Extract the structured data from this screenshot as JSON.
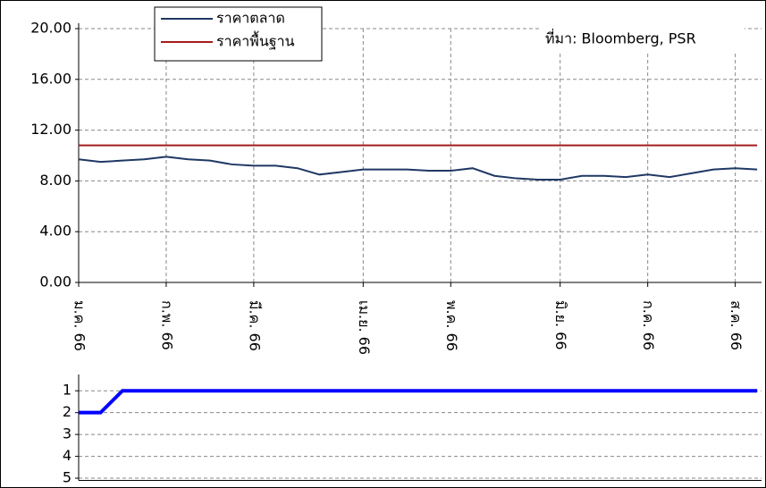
{
  "chart_data": [
    {
      "type": "line",
      "categories": [
        "ม.ค. 66",
        null,
        null,
        null,
        "ก.พ. 66",
        null,
        null,
        null,
        "มี.ค. 66",
        null,
        null,
        null,
        null,
        "เม.ย. 66",
        null,
        null,
        null,
        "พ.ค. 66",
        null,
        null,
        null,
        null,
        "มิ.ย. 66",
        null,
        null,
        null,
        "ก.ค. 66",
        null,
        null,
        null,
        "ส.ค. 66",
        null
      ],
      "series": [
        {
          "name": "ราคาตลาด",
          "color": "#1f3864",
          "values": [
            9.7,
            9.5,
            9.6,
            9.7,
            9.9,
            9.7,
            9.6,
            9.3,
            9.2,
            9.2,
            9.0,
            8.5,
            8.7,
            8.9,
            8.9,
            8.9,
            8.8,
            8.8,
            9.0,
            8.4,
            8.2,
            8.1,
            8.1,
            8.4,
            8.4,
            8.3,
            8.5,
            8.3,
            8.6,
            8.9,
            9.0,
            8.9
          ]
        },
        {
          "name": "ราคาพื้นฐาน",
          "color": "#a51c1c",
          "values": [
            10.8,
            10.8,
            10.8,
            10.8,
            10.8,
            10.8,
            10.8,
            10.8,
            10.8,
            10.8,
            10.8,
            10.8,
            10.8,
            10.8,
            10.8,
            10.8,
            10.8,
            10.8,
            10.8,
            10.8,
            10.8,
            10.8,
            10.8,
            10.8,
            10.8,
            10.8,
            10.8,
            10.8,
            10.8,
            10.8,
            10.8,
            10.8
          ]
        }
      ],
      "ylim": [
        0,
        20
      ],
      "yticks": [
        {
          "value": 0,
          "label": "0.00"
        },
        {
          "value": 4,
          "label": "4.00"
        },
        {
          "value": 8,
          "label": "8.00"
        },
        {
          "value": 12,
          "label": "12.00"
        },
        {
          "value": 16,
          "label": "16.00"
        },
        {
          "value": 20,
          "label": "20.00"
        }
      ],
      "grid": true,
      "legend": "upper center",
      "annotation": "ที่มา:  Bloomberg, PSR"
    },
    {
      "type": "line",
      "series": [
        {
          "color": "#0000ff",
          "values": [
            2,
            2,
            1,
            1,
            1,
            1,
            1,
            1,
            1,
            1,
            1,
            1,
            1,
            1,
            1,
            1,
            1,
            1,
            1,
            1,
            1,
            1,
            1,
            1,
            1,
            1,
            1,
            1,
            1,
            1,
            1,
            1
          ]
        }
      ],
      "ylim": [
        5.1,
        0.5
      ],
      "yticks": [
        1,
        2,
        3,
        4,
        5
      ],
      "grid": true
    }
  ]
}
